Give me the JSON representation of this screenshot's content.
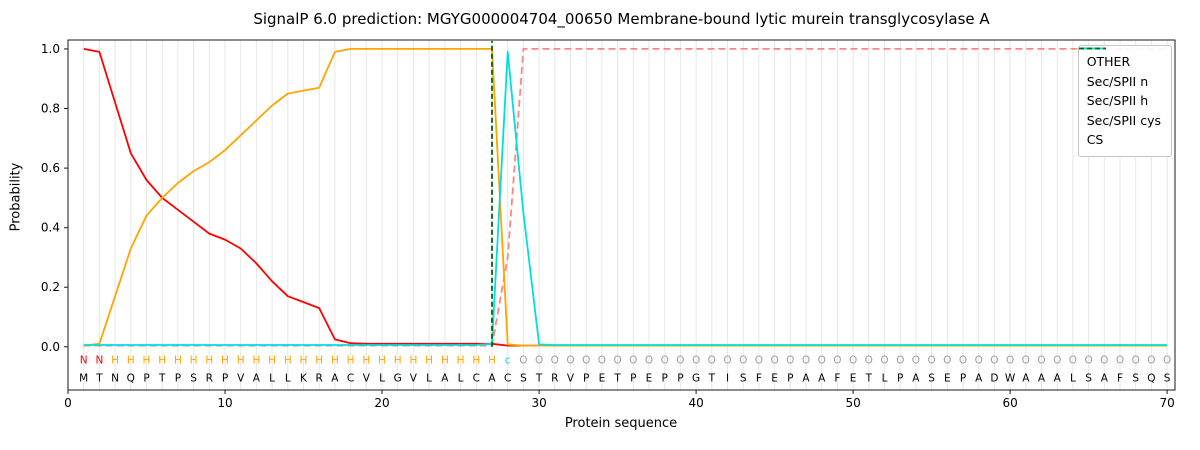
{
  "figure": {
    "title": "SignalP 6.0 prediction: MGYG000004704_00650 Membrane-bound lytic murein transglycosylase A",
    "background": "#ffffff"
  },
  "chart_data": {
    "type": "line",
    "title": "SignalP 6.0 prediction: MGYG000004704_00650 Membrane-bound lytic murein transglycosylase A",
    "xlabel": "Protein sequence",
    "ylabel": "Probability",
    "xlim": [
      0,
      70.5
    ],
    "ylim": [
      -0.145,
      1.03
    ],
    "xticks": [
      0,
      10,
      20,
      30,
      40,
      50,
      60,
      70
    ],
    "yticks": [
      0.0,
      0.2,
      0.4,
      0.6,
      0.8,
      1.0
    ],
    "n_residues": 70,
    "x_start": 1,
    "grid": {
      "vertical_line_per_residue": true,
      "color": "#e7e7e7"
    },
    "legend": {
      "position": "upper right"
    },
    "series": [
      {
        "name": "OTHER",
        "color": "#ff8585",
        "dashed": true,
        "values": [
          0.004,
          0.004,
          0.004,
          0.004,
          0.004,
          0.004,
          0.004,
          0.004,
          0.004,
          0.004,
          0.004,
          0.004,
          0.004,
          0.004,
          0.004,
          0.004,
          0.004,
          0.004,
          0.004,
          0.004,
          0.004,
          0.004,
          0.004,
          0.004,
          0.004,
          0.004,
          0.004,
          0.3,
          1.0,
          1.0,
          1.0,
          1.0,
          1.0,
          1.0,
          1.0,
          1.0,
          1.0,
          1.0,
          1.0,
          1.0,
          1.0,
          1.0,
          1.0,
          1.0,
          1.0,
          1.0,
          1.0,
          1.0,
          1.0,
          1.0,
          1.0,
          1.0,
          1.0,
          1.0,
          1.0,
          1.0,
          1.0,
          1.0,
          1.0,
          1.0,
          1.0,
          1.0,
          1.0,
          1.0,
          1.0,
          1.0,
          1.0,
          1.0,
          1.0,
          1.0
        ]
      },
      {
        "name": "Sec/SPII n",
        "color": "#ff0000",
        "dashed": false,
        "values": [
          1.0,
          0.99,
          0.82,
          0.65,
          0.56,
          0.5,
          0.46,
          0.42,
          0.38,
          0.36,
          0.33,
          0.28,
          0.22,
          0.17,
          0.15,
          0.13,
          0.025,
          0.012,
          0.01,
          0.01,
          0.01,
          0.01,
          0.01,
          0.01,
          0.01,
          0.01,
          0.01,
          0.004,
          0.004,
          0.004,
          0.004,
          0.004,
          0.004,
          0.004,
          0.004,
          0.004,
          0.004,
          0.004,
          0.004,
          0.004,
          0.004,
          0.004,
          0.004,
          0.004,
          0.004,
          0.004,
          0.004,
          0.004,
          0.004,
          0.004,
          0.004,
          0.004,
          0.004,
          0.004,
          0.004,
          0.004,
          0.004,
          0.004,
          0.004,
          0.004,
          0.004,
          0.004,
          0.004,
          0.004,
          0.004,
          0.004,
          0.004,
          0.004,
          0.004,
          0.004
        ]
      },
      {
        "name": "Sec/SPII h",
        "color": "#ffa500",
        "dashed": false,
        "values": [
          0.004,
          0.01,
          0.17,
          0.33,
          0.44,
          0.5,
          0.55,
          0.59,
          0.62,
          0.66,
          0.71,
          0.76,
          0.81,
          0.85,
          0.86,
          0.87,
          0.99,
          1.0,
          1.0,
          1.0,
          1.0,
          1.0,
          1.0,
          1.0,
          1.0,
          1.0,
          1.0,
          0.008,
          0.004,
          0.004,
          0.004,
          0.004,
          0.004,
          0.004,
          0.004,
          0.004,
          0.004,
          0.004,
          0.004,
          0.004,
          0.004,
          0.004,
          0.004,
          0.004,
          0.004,
          0.004,
          0.004,
          0.004,
          0.004,
          0.004,
          0.004,
          0.004,
          0.004,
          0.004,
          0.004,
          0.004,
          0.004,
          0.004,
          0.004,
          0.004,
          0.004,
          0.004,
          0.004,
          0.004,
          0.004,
          0.004,
          0.004,
          0.004,
          0.004,
          0.004
        ]
      },
      {
        "name": "Sec/SPII cys",
        "color": "#00dede",
        "dashed": false,
        "values": [
          0.006,
          0.006,
          0.006,
          0.006,
          0.006,
          0.006,
          0.006,
          0.006,
          0.006,
          0.006,
          0.006,
          0.006,
          0.006,
          0.006,
          0.006,
          0.006,
          0.006,
          0.006,
          0.006,
          0.006,
          0.006,
          0.006,
          0.006,
          0.006,
          0.006,
          0.006,
          0.01,
          0.99,
          0.45,
          0.008,
          0.006,
          0.006,
          0.006,
          0.006,
          0.006,
          0.006,
          0.006,
          0.006,
          0.006,
          0.006,
          0.006,
          0.006,
          0.006,
          0.006,
          0.006,
          0.006,
          0.006,
          0.006,
          0.006,
          0.006,
          0.006,
          0.006,
          0.006,
          0.006,
          0.006,
          0.006,
          0.006,
          0.006,
          0.006,
          0.006,
          0.006,
          0.006,
          0.006,
          0.006,
          0.006,
          0.006,
          0.006,
          0.006,
          0.006,
          0.006
        ]
      }
    ],
    "cs_marker": {
      "label": "CS",
      "x": 27,
      "color": "#006400",
      "dashed": true
    },
    "sequence_annotation": {
      "region_row": "NNHHHHHHHHHHHHHHHHHHHHHHHHHcOOOOOOOOOOOOOOOOOOOOOOOOOOOOOOOOOOOOOOOOOO",
      "sequence_row": "MTNQPTPSRPVALLKRACVLGVLALCACSTRVPETPEPPGTISFEPAAFETLPASEPADWAAALSAFSQS",
      "region_colors": {
        "N": "#ff0000",
        "H": "#ffa500",
        "c": "#00dede",
        "O": "#9e9e9e"
      },
      "sequence_color": "#000000"
    }
  }
}
